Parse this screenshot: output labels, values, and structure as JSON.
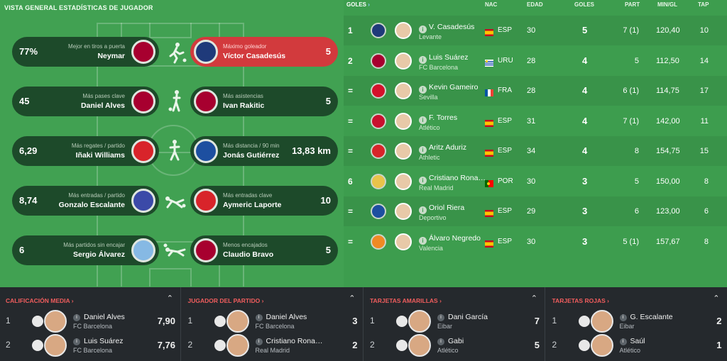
{
  "page_title": "VISTA GENERAL ESTADÍSTICAS DE JUGADOR",
  "colors": {
    "pitch": "#41a152",
    "card_dark": "#1d4a2a",
    "card_highlight": "#d23a3d",
    "bottom_bg": "#25292d",
    "bottom_title": "#f05d5d"
  },
  "cards": [
    {
      "side": "left",
      "value": "77%",
      "label": "Mejor en tiros a puerta",
      "name": "Neymar",
      "badge": "FCB",
      "badge_color": "#a7002f",
      "highlight": false
    },
    {
      "side": "right",
      "value": "5",
      "label": "Máximo goleador",
      "name": "Víctor Casadesús",
      "badge": "LEV",
      "badge_color": "#1f3a7a",
      "highlight": true
    },
    {
      "side": "left",
      "value": "45",
      "label": "Más pases clave",
      "name": "Daniel Alves",
      "badge": "FCB",
      "badge_color": "#a7002f",
      "highlight": false
    },
    {
      "side": "right",
      "value": "5",
      "label": "Más asistencias",
      "name": "Ivan Rakitic",
      "badge": "FCB",
      "badge_color": "#a7002f",
      "highlight": false
    },
    {
      "side": "left",
      "value": "6,29",
      "label": "Más regates / partido",
      "name": "Iñaki Williams",
      "badge": "ATH",
      "badge_color": "#d8242a",
      "highlight": false
    },
    {
      "side": "right",
      "value": "13,83 km",
      "label": "Más distancia / 90 min",
      "name": "Jonás Gutiérrez",
      "badge": "DEP",
      "badge_color": "#1d4fa0",
      "highlight": false
    },
    {
      "side": "left",
      "value": "8,74",
      "label": "Más entradas / partido",
      "name": "Gonzalo Escalante",
      "badge": "EIB",
      "badge_color": "#3b4aa8",
      "highlight": false
    },
    {
      "side": "right",
      "value": "10",
      "label": "Más entradas clave",
      "name": "Aymeric Laporte",
      "badge": "ATH",
      "badge_color": "#d8242a",
      "highlight": false
    },
    {
      "side": "left",
      "value": "6",
      "label": "Más partidos sin encajar",
      "name": "Sergio Álvarez",
      "badge": "CEL",
      "badge_color": "#86b9e4",
      "highlight": false
    },
    {
      "side": "right",
      "value": "5",
      "label": "Menos encajados",
      "name": "Claudio Bravo",
      "badge": "FCB",
      "badge_color": "#a7002f",
      "highlight": false
    }
  ],
  "table": {
    "headers": {
      "goles_link": "GOLES",
      "nac": "NAC",
      "edad": "EDAD",
      "goles": "GOLES",
      "part": "PART",
      "mingl": "MIN/GL",
      "tap": "TAP"
    },
    "rows": [
      {
        "rank": "1",
        "name": "V. Casadesús",
        "club": "Levante",
        "nat": "ESP",
        "age": "30",
        "goals": "5",
        "part": "7 (1)",
        "mingl": "120,40",
        "tap": "10",
        "club_color": "#1f3a7a",
        "flag": "esp"
      },
      {
        "rank": "2",
        "name": "Luis Suárez",
        "club": "FC Barcelona",
        "nat": "URU",
        "age": "28",
        "goals": "4",
        "part": "5",
        "mingl": "112,50",
        "tap": "14",
        "club_color": "#a7002f",
        "flag": "uru"
      },
      {
        "rank": "=",
        "name": "Kevin Gameiro",
        "club": "Sevilla",
        "nat": "FRA",
        "age": "28",
        "goals": "4",
        "part": "6 (1)",
        "mingl": "114,75",
        "tap": "17",
        "club_color": "#d4112b",
        "flag": "fra"
      },
      {
        "rank": "=",
        "name": "F. Torres",
        "club": "Atlético",
        "nat": "ESP",
        "age": "31",
        "goals": "4",
        "part": "7 (1)",
        "mingl": "142,00",
        "tap": "11",
        "club_color": "#c8102e",
        "flag": "esp"
      },
      {
        "rank": "=",
        "name": "Aritz Aduriz",
        "club": "Athletic",
        "nat": "ESP",
        "age": "34",
        "goals": "4",
        "part": "8",
        "mingl": "154,75",
        "tap": "15",
        "club_color": "#d8242a",
        "flag": "esp"
      },
      {
        "rank": "6",
        "name": "Cristiano Rona…",
        "club": "Real Madrid",
        "nat": "POR",
        "age": "30",
        "goals": "3",
        "part": "5",
        "mingl": "150,00",
        "tap": "8",
        "club_color": "#e9c34a",
        "flag": "por"
      },
      {
        "rank": "=",
        "name": "Oriol Riera",
        "club": "Deportivo",
        "nat": "ESP",
        "age": "29",
        "goals": "3",
        "part": "6",
        "mingl": "123,00",
        "tap": "6",
        "club_color": "#1d4fa0",
        "flag": "esp"
      },
      {
        "rank": "=",
        "name": "Álvaro Negredo",
        "club": "Valencia",
        "nat": "ESP",
        "age": "30",
        "goals": "3",
        "part": "5 (1)",
        "mingl": "157,67",
        "tap": "8",
        "club_color": "#f08a24",
        "flag": "esp"
      }
    ]
  },
  "bottom_panels": [
    {
      "title": "CALIFICACIÓN MEDIA",
      "rows": [
        {
          "num": "1",
          "name": "Daniel Alves",
          "club": "FC Barcelona",
          "value": "7,90"
        },
        {
          "num": "2",
          "name": "Luis Suárez",
          "club": "FC Barcelona",
          "value": "7,76"
        }
      ]
    },
    {
      "title": "JUGADOR DEL PARTIDO",
      "rows": [
        {
          "num": "1",
          "name": "Daniel Alves",
          "club": "FC Barcelona",
          "value": "3"
        },
        {
          "num": "2",
          "name": "Cristiano Rona…",
          "club": "Real Madrid",
          "value": "2"
        }
      ]
    },
    {
      "title": "TARJETAS AMARILLAS",
      "rows": [
        {
          "num": "1",
          "name": "Dani García",
          "club": "Eibar",
          "value": "7"
        },
        {
          "num": "2",
          "name": "Gabi",
          "club": "Atlético",
          "value": "5"
        }
      ]
    },
    {
      "title": "TARJETAS ROJAS",
      "rows": [
        {
          "num": "1",
          "name": "G. Escalante",
          "club": "Eibar",
          "value": "2"
        },
        {
          "num": "2",
          "name": "Saúl",
          "club": "Atlético",
          "value": "1"
        }
      ]
    }
  ],
  "icons": {
    "title_arrow": "chevron-right-icon",
    "collapse": "chevron-up-icon",
    "info": "info-icon"
  }
}
